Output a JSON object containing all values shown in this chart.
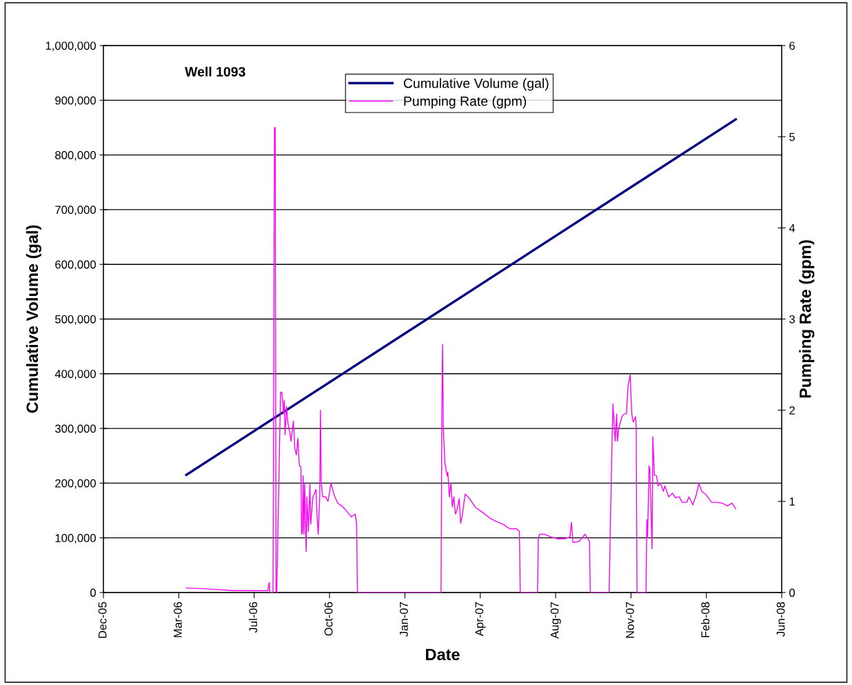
{
  "chart_data": {
    "type": "line",
    "xlabel": "Date",
    "ylabel": "Cumulative Volume (gal)",
    "y2label": "Pumping Rate (gpm)",
    "annotations": [
      "Well 1093"
    ],
    "xlim": [
      "2005-12-14",
      "2008-06-01"
    ],
    "xticks": [
      {
        "value": "2005-12-14",
        "label": "Dec-05"
      },
      {
        "value": "2006-03-24",
        "label": "Mar-06"
      },
      {
        "value": "2006-07-02",
        "label": "Jul-06"
      },
      {
        "value": "2006-10-10",
        "label": "Oct-06"
      },
      {
        "value": "2007-01-18",
        "label": "Jan-07"
      },
      {
        "value": "2007-04-28",
        "label": "Apr-07"
      },
      {
        "value": "2007-08-06",
        "label": "Aug-07"
      },
      {
        "value": "2007-11-14",
        "label": "Nov-07"
      },
      {
        "value": "2008-02-22",
        "label": "Feb-08"
      },
      {
        "value": "2008-06-01",
        "label": "Jun-08"
      }
    ],
    "ylim": [
      0,
      1000000
    ],
    "yticks": [
      {
        "value": 0,
        "label": "0"
      },
      {
        "value": 100000,
        "label": "100,000"
      },
      {
        "value": 200000,
        "label": "200,000"
      },
      {
        "value": 300000,
        "label": "300,000"
      },
      {
        "value": 400000,
        "label": "400,000"
      },
      {
        "value": 500000,
        "label": "500,000"
      },
      {
        "value": 600000,
        "label": "600,000"
      },
      {
        "value": 700000,
        "label": "700,000"
      },
      {
        "value": 800000,
        "label": "800,000"
      },
      {
        "value": 900000,
        "label": "900,000"
      },
      {
        "value": 1000000,
        "label": "1,000,000"
      }
    ],
    "y2lim": [
      0,
      6
    ],
    "y2ticks": [
      0,
      1,
      2,
      3,
      4,
      5,
      6
    ],
    "grid": "y",
    "legend": "top",
    "marker": "none",
    "line_style": "solid",
    "series": [
      {
        "name": "Cumulative Volume (gal)",
        "color": "#000080",
        "x": [
          "2006-04-03",
          "2008-04-01"
        ],
        "values": [
          215000,
          865000
        ]
      },
      {
        "name": "Pumping Rate (gpm)",
        "color": "#ff00ff",
        "axis": "y2",
        "x": [
          "2006-04-03",
          "2006-04-30",
          "2006-06-06",
          "2006-07-20",
          "2006-07-22",
          "2006-07-23",
          "2006-07-27",
          "2006-07-29",
          "2006-07-30",
          "2006-07-31",
          "2006-08-01",
          "2006-08-06",
          "2006-08-08",
          "2006-08-10",
          "2006-08-11",
          "2006-08-12",
          "2006-08-14",
          "2006-08-16",
          "2006-08-18",
          "2006-08-20",
          "2006-08-23",
          "2006-08-25",
          "2006-08-27",
          "2006-08-29",
          "2006-08-31",
          "2006-09-02",
          "2006-09-03",
          "2006-09-04",
          "2006-09-05",
          "2006-09-06",
          "2006-09-07",
          "2006-09-09",
          "2006-09-10",
          "2006-09-12",
          "2006-09-14",
          "2006-09-15",
          "2006-09-18",
          "2006-09-22",
          "2006-09-24",
          "2006-09-25",
          "2006-09-27",
          "2006-09-28",
          "2006-09-29",
          "2006-10-01",
          "2006-10-05",
          "2006-10-08",
          "2006-10-12",
          "2006-10-16",
          "2006-10-21",
          "2006-10-26",
          "2006-10-30",
          "2006-11-03",
          "2006-11-08",
          "2006-11-13",
          "2006-11-15",
          "2006-11-16",
          "2007-03-07",
          "2007-03-08",
          "2007-03-09",
          "2007-03-10",
          "2007-03-12",
          "2007-03-15",
          "2007-03-16",
          "2007-03-18",
          "2007-03-20",
          "2007-03-22",
          "2007-03-24",
          "2007-03-26",
          "2007-03-28",
          "2007-03-31",
          "2007-04-02",
          "2007-04-04",
          "2007-04-08",
          "2007-04-13",
          "2007-04-22",
          "2007-05-01",
          "2007-05-10",
          "2007-05-19",
          "2007-05-28",
          "2007-06-06",
          "2007-06-15",
          "2007-06-19",
          "2007-06-20",
          "2007-07-13",
          "2007-07-14",
          "2007-07-16",
          "2007-07-22",
          "2007-07-31",
          "2007-08-09",
          "2007-08-18",
          "2007-08-25",
          "2007-08-27",
          "2007-08-29",
          "2007-09-06",
          "2007-09-14",
          "2007-09-20",
          "2007-09-21",
          "2007-10-16",
          "2007-10-18",
          "2007-10-21",
          "2007-10-24",
          "2007-10-26",
          "2007-10-27",
          "2007-10-29",
          "2007-11-02",
          "2007-11-05",
          "2007-11-08",
          "2007-11-10",
          "2007-11-13",
          "2007-11-15",
          "2007-11-17",
          "2007-11-20",
          "2007-11-21",
          "2007-11-22",
          "2007-12-04",
          "2007-12-05",
          "2007-12-06",
          "2007-12-08",
          "2007-12-09",
          "2007-12-12",
          "2007-12-13",
          "2007-12-15",
          "2007-12-18",
          "2007-12-20",
          "2007-12-23",
          "2007-12-27",
          "2007-12-29",
          "2008-01-03",
          "2008-01-08",
          "2008-01-12",
          "2008-01-17",
          "2008-01-21",
          "2008-01-27",
          "2008-01-30",
          "2008-02-04",
          "2008-02-09",
          "2008-02-12",
          "2008-02-16",
          "2008-02-22",
          "2008-02-29",
          "2008-03-07",
          "2008-03-14",
          "2008-03-21",
          "2008-03-27",
          "2008-04-01"
        ],
        "values": [
          0.05,
          0.04,
          0.02,
          0.02,
          0.11,
          0.0,
          0.0,
          5.1,
          5.1,
          0.0,
          0.0,
          2.2,
          2.19,
          1.96,
          2.11,
          1.73,
          2.04,
          1.85,
          1.77,
          1.66,
          1.88,
          1.58,
          1.51,
          1.69,
          1.39,
          1.38,
          0.64,
          0.67,
          1.28,
          0.64,
          1.2,
          0.45,
          1.05,
          0.67,
          1.2,
          0.75,
          1.05,
          1.13,
          0.76,
          0.64,
          1.05,
          2.0,
          1.2,
          1.05,
          1.05,
          1.0,
          1.2,
          1.07,
          0.98,
          0.95,
          0.92,
          0.88,
          0.83,
          0.86,
          0.75,
          0.0,
          0.0,
          1.96,
          2.72,
          1.81,
          1.43,
          1.28,
          1.32,
          1.05,
          1.2,
          0.94,
          1.05,
          0.86,
          0.9,
          1.03,
          0.76,
          0.84,
          1.08,
          1.04,
          0.93,
          0.88,
          0.82,
          0.78,
          0.75,
          0.7,
          0.7,
          0.67,
          0.0,
          0.0,
          0.6,
          0.64,
          0.64,
          0.61,
          0.59,
          0.59,
          0.61,
          0.77,
          0.55,
          0.56,
          0.64,
          0.56,
          0.0,
          0.0,
          0.9,
          2.07,
          1.66,
          1.96,
          1.66,
          1.81,
          1.93,
          1.96,
          1.96,
          2.26,
          2.39,
          1.96,
          1.87,
          1.93,
          1.79,
          0.0,
          0.0,
          0.8,
          0.6,
          1.39,
          1.35,
          0.48,
          1.71,
          1.29,
          1.28,
          1.17,
          1.2,
          1.11,
          1.17,
          1.05,
          1.09,
          1.04,
          1.05,
          0.99,
          0.99,
          1.05,
          0.96,
          1.08,
          1.2,
          1.11,
          1.07,
          0.99,
          0.99,
          0.98,
          0.95,
          0.98,
          0.92
        ]
      }
    ]
  }
}
